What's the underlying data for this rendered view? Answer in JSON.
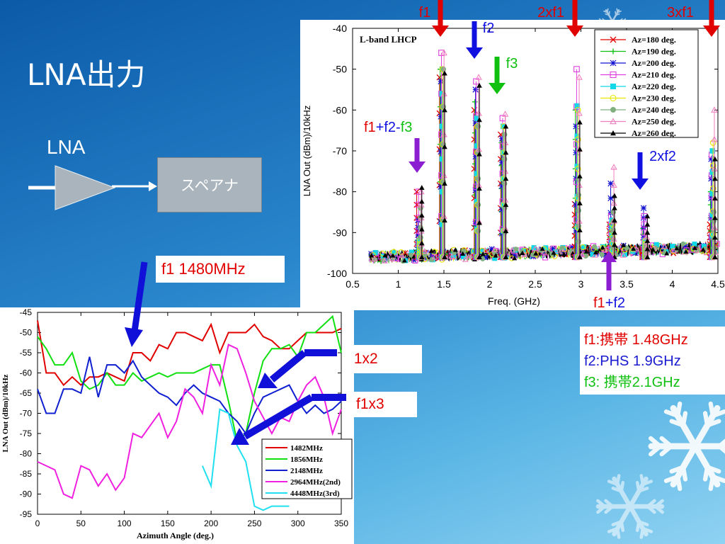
{
  "slide": {
    "title": "LNA出力",
    "lna_label": "LNA",
    "spectrum_analyzer": "スペアナ",
    "f1_note": "f1 1480MHz",
    "f1x2_label": "f1x2",
    "f1x3_label": "f1x3",
    "info": {
      "line1": "f1:携帯 1.48GHz",
      "line2": "f2:PHS 1.9GHz",
      "line3": "f3: 携帯2.1GHz"
    },
    "colors": {
      "red": "#e10000",
      "blue": "#1a1ad0",
      "green": "#10c010",
      "purple": "#8a1ed0",
      "arrow_blue": "#1010e0"
    }
  },
  "arrow_labels": {
    "f1": "f1",
    "f2": "f2",
    "f3": "f3",
    "twoxf1": "2xf1",
    "threexf1": "3xf1",
    "twoxf2": "2xf2",
    "f1f2f3_a": "f1",
    "f1f2f3_b": "+f2-",
    "f1f2f3_c": "f3",
    "f1plusf2_a": "f1",
    "f1plusf2_b": "+f2"
  },
  "chart_data": [
    {
      "type": "line",
      "title": "L-band LHCP",
      "xlabel": "Freq. (GHz)",
      "ylabel": "LNA Out (dBm)/10kHz",
      "xlim": [
        0.5,
        4.5
      ],
      "ylim": [
        -100,
        -40
      ],
      "xticks": [
        "0.5",
        "1",
        "1.5",
        "2",
        "2.5",
        "3",
        "3.5",
        "4",
        "4.5"
      ],
      "yticks": [
        "-40",
        "-50",
        "-60",
        "-70",
        "-80",
        "-90",
        "-100"
      ],
      "legend_position": "top-right",
      "legend": [
        "Az=180 deg.",
        "Az=190 deg.",
        "Az=200 deg.",
        "Az=210 deg.",
        "Az=220 deg.",
        "Az=230 deg.",
        "Az=240 deg.",
        "Az=250 deg.",
        "Az=260 deg."
      ],
      "series_colors": [
        "#e00000",
        "#10c010",
        "#1010d0",
        "#e040e0",
        "#10d8e8",
        "#e8e800",
        "#80b080",
        "#f080c0",
        "#000000"
      ],
      "series_markers": [
        "x",
        "+",
        "*",
        "square",
        "filled-square",
        "circle",
        "filled-circle",
        "triangle",
        "filled-triangle"
      ],
      "noise_floor": -96,
      "peaks": [
        {
          "freq": 1.23,
          "levels": [
            -80,
            -92,
            -87,
            -80,
            -92,
            -92,
            -84,
            -80,
            -79
          ]
        },
        {
          "freq": 1.48,
          "levels": [
            -52,
            -50,
            -53,
            -46,
            -56,
            -50,
            -50,
            -46,
            -51
          ]
        },
        {
          "freq": 1.86,
          "levels": [
            -60,
            -58,
            -55,
            -53,
            -62,
            -64,
            -64,
            -52,
            -54
          ]
        },
        {
          "freq": 2.15,
          "levels": [
            -66,
            -68,
            -67,
            -62,
            -64,
            -64,
            -66,
            -61,
            -64
          ]
        },
        {
          "freq": 2.96,
          "levels": [
            -83,
            -60,
            -64,
            -50,
            -59,
            -60,
            -77,
            -52,
            -63
          ]
        },
        {
          "freq": 3.34,
          "levels": [
            -88,
            -88,
            -78,
            -86,
            -87,
            -88,
            -85,
            -74,
            -81
          ]
        },
        {
          "freq": 3.7,
          "levels": [
            -94,
            -89,
            -84,
            -86,
            -92,
            -92,
            -93,
            -90,
            -86
          ]
        },
        {
          "freq": 4.44,
          "levels": [
            -88,
            -80,
            -72,
            -71,
            -70,
            -68,
            -85,
            -60,
            -72
          ]
        }
      ]
    },
    {
      "type": "line",
      "xlabel": "Azimuth Angle (deg.)",
      "ylabel": "LNA Out (dBm)/10kHz",
      "xlim": [
        0,
        350
      ],
      "ylim": [
        -95,
        -45
      ],
      "xticks": [
        "0",
        "50",
        "100",
        "150",
        "200",
        "250",
        "300",
        "350"
      ],
      "yticks": [
        "-45",
        "-50",
        "-55",
        "-60",
        "-65",
        "-70",
        "-75",
        "-80",
        "-85",
        "-90",
        "-95"
      ],
      "legend_position": "bottom-right",
      "series": [
        {
          "name": "1482MHz",
          "color": "#e00000",
          "x": [
            0,
            10,
            20,
            30,
            40,
            50,
            60,
            70,
            80,
            90,
            100,
            110,
            120,
            130,
            140,
            150,
            160,
            170,
            180,
            190,
            200,
            210,
            220,
            230,
            240,
            250,
            260,
            270,
            280,
            290,
            300,
            310,
            320,
            330,
            340,
            350
          ],
          "y": [
            -47,
            -60,
            -60,
            -63,
            -61,
            -63,
            -61,
            -61,
            -60,
            -61,
            -62,
            -55,
            -55,
            -57,
            -53,
            -54,
            -50,
            -50,
            -51,
            -52,
            -48,
            -55,
            -50,
            -50,
            -50,
            -48,
            -51,
            -52,
            -54,
            -54,
            -52,
            -50,
            -50,
            -50,
            -50,
            -49
          ]
        },
        {
          "name": "1856MHz",
          "color": "#10e010",
          "x": [
            0,
            10,
            20,
            30,
            40,
            50,
            60,
            70,
            80,
            90,
            100,
            110,
            120,
            130,
            140,
            150,
            160,
            170,
            180,
            190,
            200,
            210,
            220,
            230,
            240,
            250,
            260,
            270,
            280,
            290,
            300,
            310,
            320,
            330,
            340,
            350
          ],
          "y": [
            -51,
            -54,
            -58,
            -58,
            -55,
            -62,
            -64,
            -63,
            -60,
            -63,
            -63,
            -60,
            -62,
            -61,
            -60,
            -61,
            -60,
            -60,
            -60,
            -59,
            -58,
            -58,
            -67,
            -77,
            -75,
            -65,
            -57,
            -54,
            -54,
            -53,
            -56,
            -50,
            -50,
            -48,
            -46,
            -55
          ]
        },
        {
          "name": "2148MHz",
          "color": "#1020d0",
          "x": [
            0,
            10,
            20,
            30,
            40,
            50,
            60,
            70,
            80,
            90,
            100,
            110,
            120,
            130,
            140,
            150,
            160,
            170,
            180,
            190,
            200,
            210,
            220,
            230,
            240,
            250,
            260,
            270,
            280,
            290,
            300,
            310,
            320,
            330,
            340,
            350
          ],
          "y": [
            -64,
            -70,
            -70,
            -64,
            -64,
            -65,
            -56,
            -66,
            -58,
            -58,
            -60,
            -57,
            -61,
            -63,
            -65,
            -66,
            -68,
            -65,
            -63,
            -65,
            -66,
            -67,
            -70,
            -72,
            -75,
            -70,
            -66,
            -65,
            -64,
            -63,
            -67,
            -70,
            -68,
            -70,
            -69,
            -67
          ]
        },
        {
          "name": "2964MHz(2nd)",
          "color": "#f020e0",
          "x": [
            0,
            10,
            20,
            30,
            40,
            50,
            60,
            70,
            80,
            90,
            100,
            110,
            120,
            130,
            140,
            150,
            160,
            170,
            180,
            190,
            200,
            210,
            220,
            230,
            240,
            250,
            260,
            270,
            280,
            290,
            300,
            310,
            320,
            330,
            340,
            350
          ],
          "y": [
            -82,
            -83,
            -84,
            -90,
            -91,
            -83,
            -84,
            -88,
            -85,
            -89,
            -86,
            -75,
            -76,
            -73,
            -70,
            -76,
            -72,
            -64,
            -66,
            -70,
            -58,
            -63,
            -53,
            -54,
            -60,
            -67,
            -71,
            -75,
            -71,
            -72,
            -67,
            -63,
            -61,
            -66,
            -75,
            -69
          ]
        },
        {
          "name": "4448MHz(3rd)",
          "color": "#20e0f0",
          "x": [
            190,
            200,
            210,
            220,
            230,
            240,
            250,
            260,
            270,
            280,
            290
          ],
          "y": [
            -83,
            -88,
            -69,
            -70,
            -78,
            -82,
            -93,
            -94,
            -93,
            -93,
            -93
          ]
        }
      ]
    }
  ]
}
